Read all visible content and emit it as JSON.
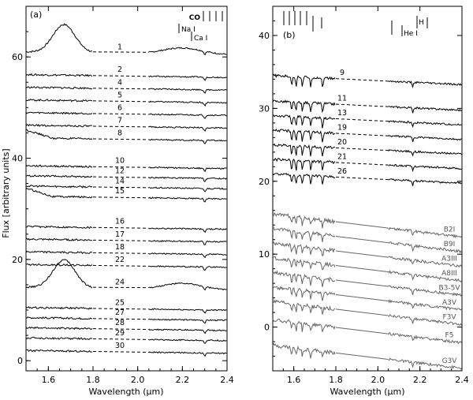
{
  "figure": {
    "xlabel": "Wavelength (μm)",
    "ylabel": "Flux [arbitrary units]"
  },
  "chart_data": [
    {
      "panel": "(a)",
      "type": "line",
      "xlabel": "Wavelength (μm)",
      "ylabel": "Flux [arbitrary units]",
      "xlim": [
        1.5,
        2.4
      ],
      "ylim": [
        -2,
        70
      ],
      "xticks": [
        "1.6",
        "1.8",
        "2.0",
        "2.2",
        "2.4"
      ],
      "yticks": [
        "0",
        "20",
        "40",
        "60"
      ],
      "gap": [
        1.8,
        2.05
      ],
      "line_ids": [
        "CO",
        "Na I",
        "Ca I"
      ],
      "series": [
        {
          "name": "1",
          "level": 61.0,
          "shape": "hump"
        },
        {
          "name": "2",
          "level": 56.5
        },
        {
          "name": "4",
          "level": 54.0
        },
        {
          "name": "5",
          "level": 51.5
        },
        {
          "name": "6",
          "level": 49.0
        },
        {
          "name": "7",
          "level": 46.5
        },
        {
          "name": "8",
          "level": 44.0,
          "shape": "rise"
        },
        {
          "name": "10",
          "level": 38.5
        },
        {
          "name": "12",
          "level": 36.5
        },
        {
          "name": "14",
          "level": 34.5
        },
        {
          "name": "15",
          "level": 32.5,
          "shape": "rise"
        },
        {
          "name": "16",
          "level": 26.5
        },
        {
          "name": "17",
          "level": 24.0
        },
        {
          "name": "18",
          "level": 21.5
        },
        {
          "name": "22",
          "level": 19.0
        },
        {
          "name": "24",
          "level": 14.5,
          "shape": "hump"
        },
        {
          "name": "25",
          "level": 10.5
        },
        {
          "name": "27",
          "level": 8.5
        },
        {
          "name": "28",
          "level": 6.5
        },
        {
          "name": "29",
          "level": 4.5
        },
        {
          "name": "30",
          "level": 2.0
        }
      ]
    },
    {
      "panel": "(b)",
      "type": "line",
      "xlabel": "Wavelength (μm)",
      "ylabel": "Flux [arbitrary units]",
      "xlim": [
        1.5,
        2.4
      ],
      "ylim": [
        -6,
        44
      ],
      "xticks": [
        "1.6",
        "1.8",
        "2.0",
        "2.2",
        "2.4"
      ],
      "yticks": [
        "0",
        "10",
        "20",
        "30",
        "40"
      ],
      "gap": [
        1.8,
        2.05
      ],
      "line_ids": [
        "H I",
        "He I"
      ],
      "series": [
        {
          "name": "9",
          "level": 34.5,
          "group": "object"
        },
        {
          "name": "11",
          "level": 31.0,
          "group": "object"
        },
        {
          "name": "13",
          "level": 29.0,
          "group": "object"
        },
        {
          "name": "19",
          "level": 27.0,
          "group": "object"
        },
        {
          "name": "20",
          "level": 25.0,
          "group": "object"
        },
        {
          "name": "21",
          "level": 23.0,
          "group": "object"
        },
        {
          "name": "26",
          "level": 21.0,
          "group": "object"
        },
        {
          "name": "B2I",
          "level": 15.5,
          "group": "template"
        },
        {
          "name": "B9I",
          "level": 13.5,
          "group": "template"
        },
        {
          "name": "A3III",
          "level": 11.5,
          "group": "template"
        },
        {
          "name": "A8III",
          "level": 9.5,
          "group": "template"
        },
        {
          "name": "B3-5V",
          "level": 7.5,
          "group": "template"
        },
        {
          "name": "A3V",
          "level": 5.5,
          "group": "template"
        },
        {
          "name": "F3V",
          "level": 3.5,
          "group": "template"
        },
        {
          "name": "F5",
          "level": 1.0,
          "group": "template"
        },
        {
          "name": "G3V",
          "level": -2.5,
          "group": "template"
        }
      ]
    }
  ]
}
